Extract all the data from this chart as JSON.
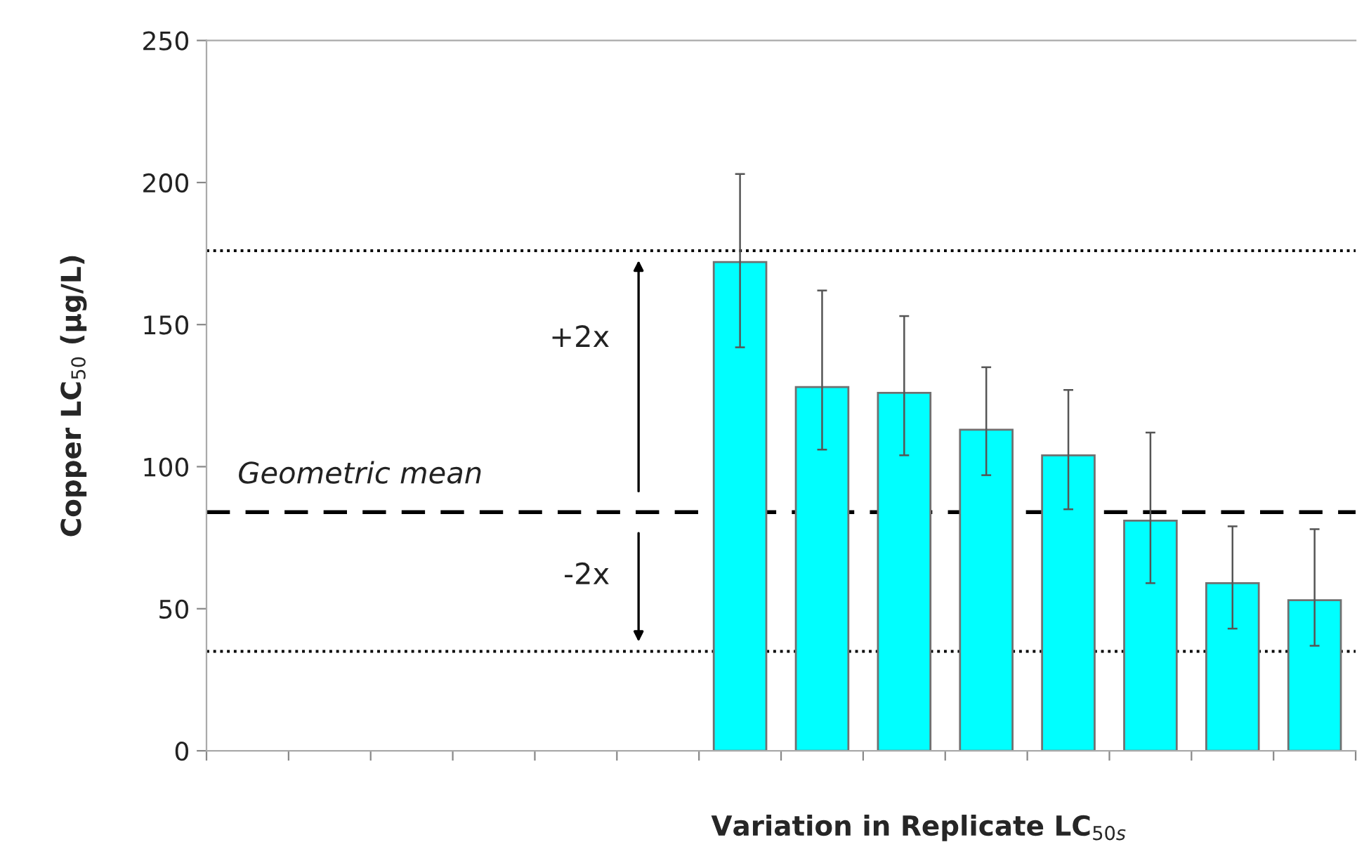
{
  "chart_data": {
    "type": "bar",
    "xlabel": "Variation in Replicate LC$_{50s}$",
    "ylabel": "Copper LC$_{50}$ (µg/L)",
    "categories": [
      null,
      null,
      null,
      null,
      null,
      null,
      null,
      null,
      null,
      null,
      null,
      null,
      null,
      null
    ],
    "values": [
      null,
      null,
      null,
      null,
      null,
      null,
      172,
      128,
      126,
      113,
      104,
      81,
      59,
      53
    ],
    "errors": [
      null,
      null,
      null,
      null,
      null,
      null,
      [
        142,
        203
      ],
      [
        106,
        162
      ],
      [
        104,
        153
      ],
      [
        97,
        135
      ],
      [
        85,
        127
      ],
      [
        59,
        112
      ],
      [
        43,
        79
      ],
      [
        37,
        78
      ]
    ],
    "color": "#00ffff",
    "ylim": [
      0,
      250
    ],
    "yticks": [
      0,
      50,
      100,
      150,
      200,
      250
    ],
    "ref_lines": [
      {
        "axis": "y",
        "value": 176,
        "label": "+2x",
        "line_style": "dotted",
        "color": "#000000"
      },
      {
        "axis": "y",
        "value": 84,
        "label": "Geometric mean",
        "line_style": "dashed",
        "color": "#000000"
      },
      {
        "axis": "y",
        "value": 35,
        "label": "-2x",
        "line_style": "dotted",
        "color": "#000000"
      }
    ],
    "grid": false
  }
}
